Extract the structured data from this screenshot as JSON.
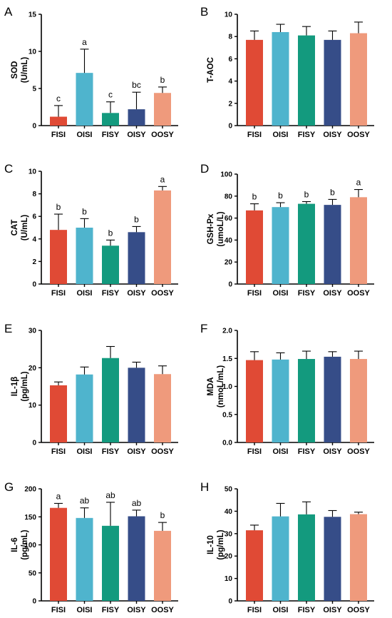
{
  "colors": [
    "#e04a35",
    "#4fb4cd",
    "#139a7e",
    "#364d88",
    "#ef9a7c"
  ],
  "chart_data": [
    {
      "panel": "A",
      "type": "bar",
      "ylabel_line1": "SOD",
      "ylabel_line2": "(U/mL)",
      "categories": [
        "FISI",
        "OISI",
        "FISY",
        "OISY",
        "OOSY"
      ],
      "values": [
        1.2,
        7.1,
        1.7,
        2.2,
        4.4
      ],
      "errors": [
        1.5,
        3.2,
        1.5,
        2.3,
        0.8
      ],
      "letters": [
        "c",
        "a",
        "c",
        "bc",
        "b"
      ],
      "ylim": [
        0,
        15
      ],
      "ticks": [
        0,
        5,
        10,
        15
      ]
    },
    {
      "panel": "B",
      "type": "bar",
      "ylabel_line1": "T-AOC",
      "ylabel_line2": "",
      "categories": [
        "FISI",
        "OISI",
        "FISY",
        "OISY",
        "OOSY"
      ],
      "values": [
        7.7,
        8.4,
        8.1,
        7.7,
        8.3
      ],
      "errors": [
        0.8,
        0.7,
        0.8,
        0.8,
        1.0
      ],
      "letters": [],
      "ylim": [
        0,
        10
      ],
      "ticks": [
        0,
        2,
        4,
        6,
        8,
        10
      ]
    },
    {
      "panel": "C",
      "type": "bar",
      "ylabel_line1": "CAT",
      "ylabel_line2": "(U/mL)",
      "categories": [
        "FISI",
        "OISI",
        "FISY",
        "OISY",
        "OOSY"
      ],
      "values": [
        4.8,
        5.0,
        3.4,
        4.6,
        8.3
      ],
      "errors": [
        1.4,
        0.8,
        0.5,
        0.5,
        0.35
      ],
      "letters": [
        "b",
        "b",
        "b",
        "b",
        "a"
      ],
      "ylim": [
        0,
        10
      ],
      "ticks": [
        0,
        2,
        4,
        6,
        8,
        10
      ]
    },
    {
      "panel": "D",
      "type": "bar",
      "ylabel_line1": "GSH-Px",
      "ylabel_line2": "(umoL/L)",
      "categories": [
        "FISI",
        "OISI",
        "FISY",
        "OISY",
        "OOSY"
      ],
      "values": [
        67,
        70,
        73,
        72,
        79
      ],
      "errors": [
        6,
        4,
        2,
        5,
        7
      ],
      "letters": [
        "b",
        "b",
        "b",
        "b",
        "a"
      ],
      "ylim": [
        0,
        100
      ],
      "ticks": [
        0,
        20,
        40,
        60,
        80,
        100
      ]
    },
    {
      "panel": "E",
      "type": "bar",
      "ylabel_line1": "IL-1β",
      "ylabel_line2": "(pg/mL)",
      "categories": [
        "FISI",
        "OISI",
        "FISY",
        "OISY",
        "OOSY"
      ],
      "values": [
        15.3,
        18.2,
        22.6,
        20.0,
        18.3
      ],
      "errors": [
        0.9,
        2.0,
        3.1,
        1.5,
        2.2
      ],
      "letters": [],
      "ylim": [
        0,
        30
      ],
      "ticks": [
        0,
        10,
        20,
        30
      ]
    },
    {
      "panel": "F",
      "type": "bar",
      "ylabel_line1": "MDA",
      "ylabel_line2": "(nmoL/mL)",
      "categories": [
        "FISI",
        "OISI",
        "FISY",
        "OISY",
        "OOSY"
      ],
      "values": [
        1.47,
        1.48,
        1.49,
        1.53,
        1.49
      ],
      "errors": [
        0.15,
        0.12,
        0.14,
        0.09,
        0.14
      ],
      "letters": [],
      "ylim": [
        0,
        2.0
      ],
      "ticks": [
        0,
        0.5,
        1.0,
        1.5,
        2.0
      ],
      "tick_decimals": 1
    },
    {
      "panel": "G",
      "type": "bar",
      "ylabel_line1": "IL-6",
      "ylabel_line2": "(pg/mL)",
      "categories": [
        "FISI",
        "OISI",
        "FISY",
        "OISY",
        "OOSY"
      ],
      "values": [
        166,
        148,
        134,
        151,
        125
      ],
      "errors": [
        8,
        18,
        42,
        11,
        15
      ],
      "letters": [
        "a",
        "ab",
        "ab",
        "ab",
        "b"
      ],
      "ylim": [
        0,
        200
      ],
      "ticks": [
        0,
        50,
        100,
        150,
        200
      ]
    },
    {
      "panel": "H",
      "type": "bar",
      "ylabel_line1": "IL-10",
      "ylabel_line2": "(pg/mL)",
      "categories": [
        "FISI",
        "OISI",
        "FISY",
        "OISY",
        "OOSY"
      ],
      "values": [
        31.5,
        37.7,
        38.6,
        37.5,
        38.7
      ],
      "errors": [
        2.3,
        5.8,
        5.6,
        2.8,
        0.9
      ],
      "letters": [],
      "ylim": [
        0,
        50
      ],
      "ticks": [
        0,
        10,
        20,
        30,
        40,
        50
      ]
    }
  ]
}
